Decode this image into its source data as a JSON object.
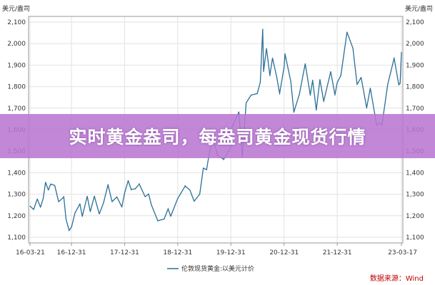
{
  "banner": {
    "title": "实时黄金盎司，每盎司黄金现货行情"
  },
  "chart_data": {
    "type": "line",
    "unit_left": "美元/盎司",
    "unit_right": "美元/盎司",
    "y_ticks": [
      "2,100",
      "2,000",
      "1,900",
      "1,800",
      "1,700",
      "1,600",
      "1,500",
      "1,400",
      "1,300",
      "1,200",
      "1,100"
    ],
    "ylim": [
      1100,
      2100
    ],
    "x_ticks": [
      "16-03-21",
      "16-12-31",
      "17-12-31",
      "18-12-31",
      "19-12-31",
      "20-12-31",
      "21-12-31",
      "23-03-17"
    ],
    "x_tick_dates": [
      "2016-03-21",
      "2016-12-31",
      "2017-12-31",
      "2018-12-31",
      "2019-12-31",
      "2020-12-31",
      "2021-12-31",
      "2023-03-17"
    ],
    "grid": true,
    "series": [
      {
        "name": "伦敦现货黄金:以美元计价",
        "color": "#2a6f97",
        "points": [
          [
            "2016-03-21",
            1245
          ],
          [
            "2016-04-15",
            1232
          ],
          [
            "2016-05-10",
            1275
          ],
          [
            "2016-06-01",
            1240
          ],
          [
            "2016-06-20",
            1280
          ],
          [
            "2016-07-06",
            1355
          ],
          [
            "2016-07-25",
            1320
          ],
          [
            "2016-08-10",
            1345
          ],
          [
            "2016-09-07",
            1340
          ],
          [
            "2016-10-04",
            1265
          ],
          [
            "2016-11-08",
            1290
          ],
          [
            "2016-11-24",
            1185
          ],
          [
            "2016-12-15",
            1130
          ],
          [
            "2016-12-31",
            1150
          ],
          [
            "2017-01-24",
            1215
          ],
          [
            "2017-02-27",
            1255
          ],
          [
            "2017-03-15",
            1200
          ],
          [
            "2017-04-18",
            1290
          ],
          [
            "2017-05-09",
            1220
          ],
          [
            "2017-06-06",
            1290
          ],
          [
            "2017-07-10",
            1210
          ],
          [
            "2017-08-08",
            1260
          ],
          [
            "2017-09-08",
            1345
          ],
          [
            "2017-10-06",
            1265
          ],
          [
            "2017-11-08",
            1285
          ],
          [
            "2017-12-12",
            1240
          ],
          [
            "2017-12-31",
            1305
          ],
          [
            "2018-01-25",
            1360
          ],
          [
            "2018-02-14",
            1320
          ],
          [
            "2018-03-14",
            1325
          ],
          [
            "2018-04-11",
            1350
          ],
          [
            "2018-05-21",
            1290
          ],
          [
            "2018-06-14",
            1300
          ],
          [
            "2018-07-03",
            1250
          ],
          [
            "2018-08-16",
            1175
          ],
          [
            "2018-09-28",
            1185
          ],
          [
            "2018-10-26",
            1235
          ],
          [
            "2018-11-13",
            1200
          ],
          [
            "2018-12-31",
            1280
          ],
          [
            "2019-02-20",
            1340
          ],
          [
            "2019-03-25",
            1320
          ],
          [
            "2019-04-23",
            1270
          ],
          [
            "2019-05-31",
            1300
          ],
          [
            "2019-06-25",
            1420
          ],
          [
            "2019-07-17",
            1415
          ],
          [
            "2019-08-07",
            1500
          ],
          [
            "2019-09-04",
            1550
          ],
          [
            "2019-10-01",
            1480
          ],
          [
            "2019-11-12",
            1460
          ],
          [
            "2019-12-31",
            1515
          ],
          [
            "2020-01-08",
            1610
          ],
          [
            "2020-02-24",
            1680
          ],
          [
            "2020-03-19",
            1475
          ],
          [
            "2020-04-14",
            1725
          ],
          [
            "2020-05-18",
            1760
          ],
          [
            "2020-06-29",
            1770
          ],
          [
            "2020-07-20",
            1820
          ],
          [
            "2020-08-06",
            2065
          ],
          [
            "2020-08-12",
            1870
          ],
          [
            "2020-09-01",
            1975
          ],
          [
            "2020-09-24",
            1850
          ],
          [
            "2020-10-12",
            1930
          ],
          [
            "2020-11-09",
            1850
          ],
          [
            "2020-11-30",
            1765
          ],
          [
            "2020-12-31",
            1890
          ],
          [
            "2021-01-06",
            1950
          ],
          [
            "2021-02-15",
            1825
          ],
          [
            "2021-03-08",
            1680
          ],
          [
            "2021-04-15",
            1765
          ],
          [
            "2021-05-25",
            1905
          ],
          [
            "2021-06-29",
            1760
          ],
          [
            "2021-07-15",
            1830
          ],
          [
            "2021-08-09",
            1690
          ],
          [
            "2021-09-03",
            1830
          ],
          [
            "2021-09-29",
            1730
          ],
          [
            "2021-11-16",
            1870
          ],
          [
            "2021-12-15",
            1760
          ],
          [
            "2021-12-31",
            1820
          ],
          [
            "2022-01-25",
            1850
          ],
          [
            "2022-03-08",
            2050
          ],
          [
            "2022-04-18",
            1980
          ],
          [
            "2022-05-16",
            1810
          ],
          [
            "2022-06-13",
            1840
          ],
          [
            "2022-07-21",
            1700
          ],
          [
            "2022-08-15",
            1790
          ],
          [
            "2022-09-28",
            1620
          ],
          [
            "2022-10-20",
            1630
          ],
          [
            "2022-11-03",
            1620
          ],
          [
            "2022-12-13",
            1810
          ],
          [
            "2023-01-26",
            1935
          ],
          [
            "2023-02-27",
            1810
          ],
          [
            "2023-03-08",
            1815
          ],
          [
            "2023-03-17",
            1960
          ]
        ]
      }
    ]
  },
  "legend": {
    "label": "伦敦现货黄金:以美元计价"
  },
  "source": {
    "text": "数据来源：Wind"
  }
}
